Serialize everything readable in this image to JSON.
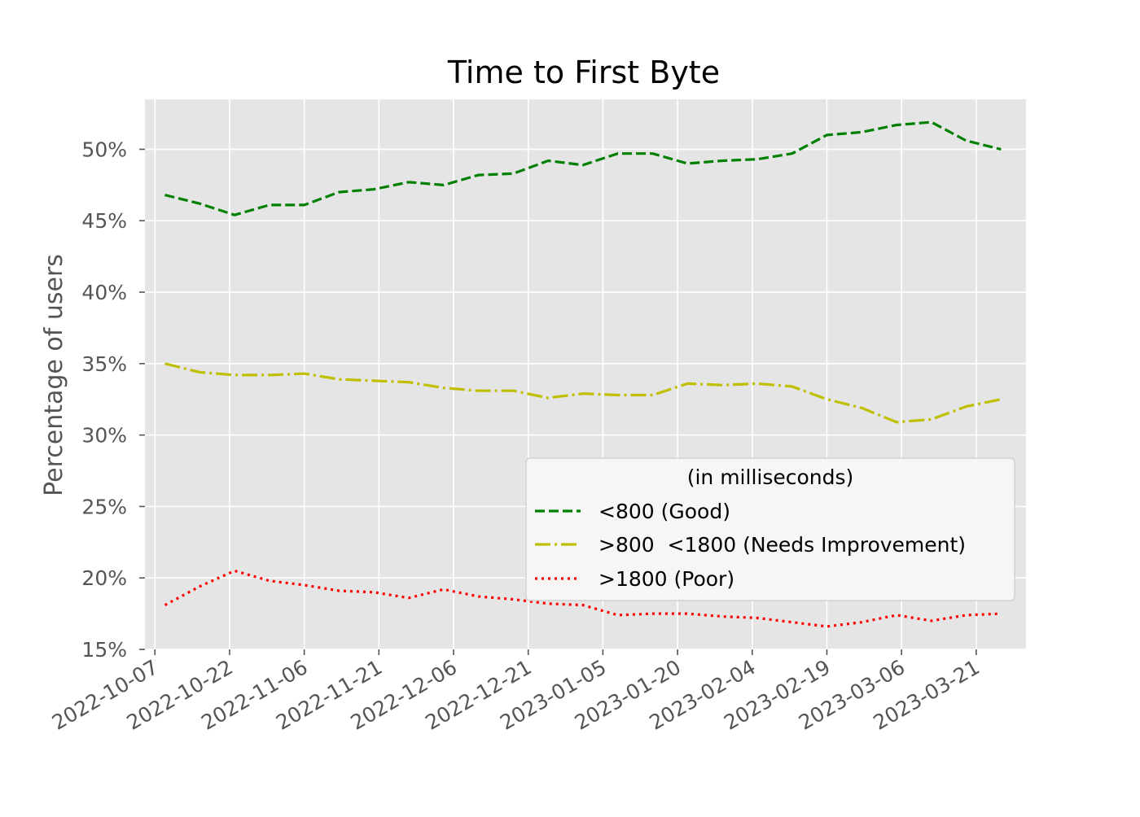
{
  "chart_data": {
    "type": "line",
    "title": "Time to First Byte",
    "xlabel": "",
    "ylabel": "Percentage of users",
    "ylim": [
      15,
      53.5
    ],
    "xlim": [
      "2022-10-05",
      "2023-03-31"
    ],
    "grid": true,
    "y_ticks": [
      15,
      20,
      25,
      30,
      35,
      40,
      45,
      50
    ],
    "y_tick_labels": [
      "15%",
      "20%",
      "25%",
      "30%",
      "35%",
      "40%",
      "45%",
      "50%"
    ],
    "x_ticks": [
      "2022-10-07",
      "2022-10-22",
      "2022-11-06",
      "2022-11-21",
      "2022-12-06",
      "2022-12-21",
      "2023-01-05",
      "2023-01-20",
      "2023-02-04",
      "2023-02-19",
      "2023-03-06",
      "2023-03-21"
    ],
    "x_tick_labels": [
      "2022-10-07",
      "2022-10-22",
      "2022-11-06",
      "2022-11-21",
      "2022-12-06",
      "2022-12-21",
      "2023-01-05",
      "2023-01-20",
      "2023-02-04",
      "2023-02-19",
      "2023-03-06",
      "2023-03-21"
    ],
    "legend": {
      "title": "(in milliseconds)",
      "placement": "lower-right"
    },
    "x": [
      "2022-10-09",
      "2022-10-16",
      "2022-10-23",
      "2022-10-30",
      "2022-11-06",
      "2022-11-13",
      "2022-11-20",
      "2022-11-27",
      "2022-12-04",
      "2022-12-11",
      "2022-12-18",
      "2022-12-25",
      "2023-01-01",
      "2023-01-08",
      "2023-01-15",
      "2023-01-22",
      "2023-01-29",
      "2023-02-05",
      "2023-02-12",
      "2023-02-19",
      "2023-02-26",
      "2023-03-05",
      "2023-03-12",
      "2023-03-19",
      "2023-03-26"
    ],
    "series": [
      {
        "name": "<800 (Good)",
        "color": "#008000",
        "dash": "dashed",
        "values": [
          46.8,
          46.2,
          45.4,
          46.1,
          46.1,
          47.0,
          47.2,
          47.7,
          47.5,
          48.2,
          48.3,
          49.2,
          48.9,
          49.7,
          49.7,
          49.0,
          49.2,
          49.3,
          49.7,
          51.0,
          51.2,
          51.7,
          51.9,
          50.6,
          50.0
        ]
      },
      {
        "name": ">800  <1800 (Needs Improvement)",
        "color": "#bfbf00",
        "dash": "dashdot",
        "values": [
          35.0,
          34.4,
          34.2,
          34.2,
          34.3,
          33.9,
          33.8,
          33.7,
          33.3,
          33.1,
          33.1,
          32.6,
          32.9,
          32.8,
          32.8,
          33.6,
          33.5,
          33.6,
          33.4,
          32.5,
          31.9,
          30.9,
          31.1,
          32.0,
          32.5
        ]
      },
      {
        "name": ">1800 (Poor)",
        "color": "#ff0000",
        "dash": "dotted",
        "values": [
          18.1,
          19.4,
          20.5,
          19.8,
          19.5,
          19.1,
          19.0,
          18.6,
          19.2,
          18.7,
          18.5,
          18.2,
          18.1,
          17.4,
          17.5,
          17.5,
          17.3,
          17.2,
          16.9,
          16.6,
          16.9,
          17.4,
          17.0,
          17.4,
          17.5
        ]
      }
    ]
  }
}
